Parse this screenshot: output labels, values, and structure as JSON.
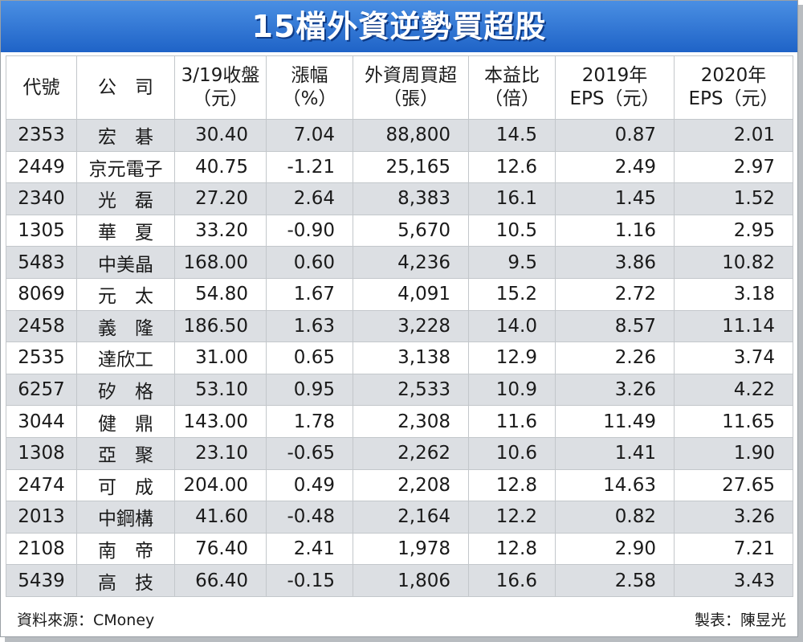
{
  "title": "15檔外資逆勢買超股",
  "headers": [
    [
      "代號"
    ],
    [
      "公　司"
    ],
    [
      "3/19收盤",
      "（元）"
    ],
    [
      "漲幅",
      "（%）"
    ],
    [
      "外資周買超",
      "（張）"
    ],
    [
      "本益比",
      "（倍）"
    ],
    [
      "2019年",
      "EPS（元）"
    ],
    [
      "2020年",
      "EPS（元）"
    ]
  ],
  "chart_data": {
    "type": "table",
    "title": "15檔外資逆勢買超股",
    "columns": [
      "代號",
      "公司",
      "3/19收盤（元）",
      "漲幅（%）",
      "外資周買超（張）",
      "本益比（倍）",
      "2019年EPS（元）",
      "2020年EPS（元）"
    ],
    "rows": [
      [
        "2353",
        "宏　碁",
        "30.40",
        "7.04",
        "88,800",
        "14.5",
        "0.87",
        "2.01"
      ],
      [
        "2449",
        "京元電子",
        "40.75",
        "-1.21",
        "25,165",
        "12.6",
        "2.49",
        "2.97"
      ],
      [
        "2340",
        "光　磊",
        "27.20",
        "2.64",
        "8,383",
        "16.1",
        "1.45",
        "1.52"
      ],
      [
        "1305",
        "華　夏",
        "33.20",
        "-0.90",
        "5,670",
        "10.5",
        "1.16",
        "2.95"
      ],
      [
        "5483",
        "中美晶",
        "168.00",
        "0.60",
        "4,236",
        "9.5",
        "3.86",
        "10.82"
      ],
      [
        "8069",
        "元　太",
        "54.80",
        "1.67",
        "4,091",
        "15.2",
        "2.72",
        "3.18"
      ],
      [
        "2458",
        "義　隆",
        "186.50",
        "1.63",
        "3,228",
        "14.0",
        "8.57",
        "11.14"
      ],
      [
        "2535",
        "達欣工",
        "31.00",
        "0.65",
        "3,138",
        "12.9",
        "2.26",
        "3.74"
      ],
      [
        "6257",
        "矽　格",
        "53.10",
        "0.95",
        "2,533",
        "10.9",
        "3.26",
        "4.22"
      ],
      [
        "3044",
        "健　鼎",
        "143.00",
        "1.78",
        "2,308",
        "11.6",
        "11.49",
        "11.65"
      ],
      [
        "1308",
        "亞　聚",
        "23.10",
        "-0.65",
        "2,262",
        "10.6",
        "1.41",
        "1.90"
      ],
      [
        "2474",
        "可　成",
        "204.00",
        "0.49",
        "2,208",
        "12.8",
        "14.63",
        "27.65"
      ],
      [
        "2013",
        "中鋼構",
        "41.60",
        "-0.48",
        "2,164",
        "12.2",
        "0.82",
        "3.26"
      ],
      [
        "2108",
        "南　帝",
        "76.40",
        "2.41",
        "1,978",
        "12.8",
        "2.90",
        "7.21"
      ],
      [
        "5439",
        "高　技",
        "66.40",
        "-0.15",
        "1,806",
        "16.6",
        "2.58",
        "3.43"
      ]
    ]
  },
  "footer": {
    "source": "資料來源：CMoney",
    "maker": "製表：陳昱光"
  },
  "colors": {
    "title_bg": "#1f63c7",
    "row_stripe": "#dcdfe3",
    "grid": "#c3c7cb"
  }
}
